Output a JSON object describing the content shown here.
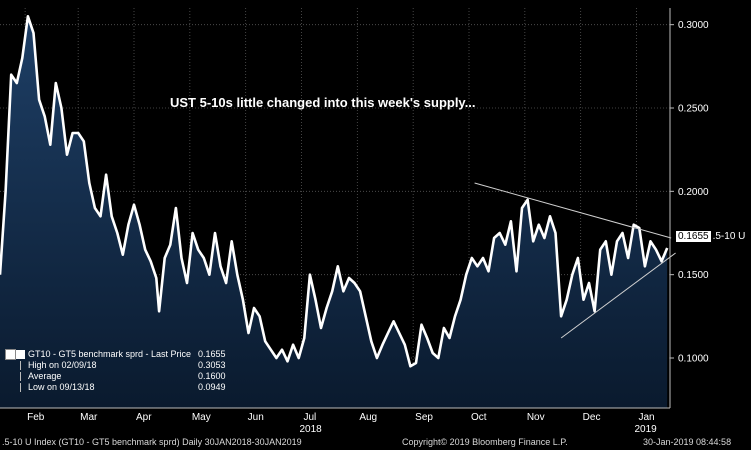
{
  "annotation": "UST 5-10s little changed into this week's supply...",
  "last_price_label": {
    "value": "0.1655",
    "tag": ".5-10 U"
  },
  "legend": {
    "rows": [
      {
        "label": "GT10 - GT5 benchmark sprd - Last Price",
        "value": "0.1655"
      },
      {
        "label": "High on 02/09/18",
        "value": "0.3053"
      },
      {
        "label": "Average",
        "value": "0.1600"
      },
      {
        "label": "Low on 09/13/18",
        "value": "0.0949"
      }
    ]
  },
  "bottom_bar": {
    "left": ".5-10 U Index (GT10 - GT5 benchmark sprd) Daily 30JAN2018-30JAN2019",
    "center": "Copyright© 2019 Bloomberg Finance L.P.",
    "right": "30-Jan-2019 08:44:58"
  },
  "colors": {
    "background": "#000000",
    "line": "#ffffff",
    "fill_top": "#1e3f66",
    "fill_bottom": "#0a1a2e",
    "trendline": "#d0d0d0"
  },
  "chart_data": {
    "type": "area",
    "title": "",
    "xlabel": "",
    "ylabel": "",
    "ylim": [
      0.07,
      0.31
    ],
    "y_ticks": [
      0.1,
      0.15,
      0.2,
      0.25,
      0.3
    ],
    "y_tick_labels": [
      "0.1000",
      "0.1500",
      "0.2000",
      "0.2500",
      "0.3000"
    ],
    "x_tick_labels": [
      "Feb",
      "Mar",
      "Apr",
      "May",
      "Jun",
      "Jul",
      "Aug",
      "Sep",
      "Oct",
      "Nov",
      "Dec",
      "Jan"
    ],
    "x_tick_positions": [
      0.05,
      1.0,
      2.0,
      3.0,
      4.0,
      5.0,
      6.0,
      7.0,
      8.0,
      9.0,
      10.0,
      11.0
    ],
    "x_year_labels": [
      {
        "label": "2018",
        "x": 5.0
      },
      {
        "label": "2019",
        "x": 11.0
      }
    ],
    "xlim": [
      -0.4,
      11.6
    ],
    "series": [
      {
        "values": [
          [
            -0.4,
            0.15
          ],
          [
            -0.3,
            0.2
          ],
          [
            -0.2,
            0.27
          ],
          [
            -0.1,
            0.265
          ],
          [
            0.0,
            0.28
          ],
          [
            0.1,
            0.305
          ],
          [
            0.2,
            0.295
          ],
          [
            0.3,
            0.255
          ],
          [
            0.4,
            0.245
          ],
          [
            0.5,
            0.228
          ],
          [
            0.6,
            0.265
          ],
          [
            0.7,
            0.25
          ],
          [
            0.8,
            0.222
          ],
          [
            0.9,
            0.235
          ],
          [
            1.0,
            0.235
          ],
          [
            1.1,
            0.23
          ],
          [
            1.2,
            0.205
          ],
          [
            1.3,
            0.19
          ],
          [
            1.4,
            0.185
          ],
          [
            1.5,
            0.21
          ],
          [
            1.6,
            0.185
          ],
          [
            1.7,
            0.175
          ],
          [
            1.8,
            0.162
          ],
          [
            1.9,
            0.18
          ],
          [
            2.0,
            0.192
          ],
          [
            2.1,
            0.18
          ],
          [
            2.2,
            0.165
          ],
          [
            2.3,
            0.158
          ],
          [
            2.4,
            0.148
          ],
          [
            2.45,
            0.128
          ],
          [
            2.55,
            0.16
          ],
          [
            2.65,
            0.168
          ],
          [
            2.75,
            0.19
          ],
          [
            2.85,
            0.16
          ],
          [
            2.95,
            0.145
          ],
          [
            3.05,
            0.175
          ],
          [
            3.15,
            0.165
          ],
          [
            3.25,
            0.16
          ],
          [
            3.35,
            0.15
          ],
          [
            3.45,
            0.175
          ],
          [
            3.55,
            0.155
          ],
          [
            3.65,
            0.145
          ],
          [
            3.75,
            0.17
          ],
          [
            3.85,
            0.15
          ],
          [
            3.95,
            0.135
          ],
          [
            4.05,
            0.115
          ],
          [
            4.15,
            0.13
          ],
          [
            4.25,
            0.125
          ],
          [
            4.35,
            0.11
          ],
          [
            4.45,
            0.105
          ],
          [
            4.55,
            0.1
          ],
          [
            4.65,
            0.105
          ],
          [
            4.75,
            0.098
          ],
          [
            4.85,
            0.108
          ],
          [
            4.95,
            0.1
          ],
          [
            5.05,
            0.112
          ],
          [
            5.15,
            0.15
          ],
          [
            5.25,
            0.135
          ],
          [
            5.35,
            0.118
          ],
          [
            5.45,
            0.13
          ],
          [
            5.55,
            0.14
          ],
          [
            5.65,
            0.155
          ],
          [
            5.75,
            0.14
          ],
          [
            5.85,
            0.148
          ],
          [
            5.95,
            0.145
          ],
          [
            6.05,
            0.14
          ],
          [
            6.15,
            0.125
          ],
          [
            6.25,
            0.11
          ],
          [
            6.35,
            0.1
          ],
          [
            6.45,
            0.108
          ],
          [
            6.55,
            0.115
          ],
          [
            6.65,
            0.122
          ],
          [
            6.75,
            0.115
          ],
          [
            6.85,
            0.108
          ],
          [
            6.95,
            0.095
          ],
          [
            7.05,
            0.097
          ],
          [
            7.15,
            0.12
          ],
          [
            7.25,
            0.112
          ],
          [
            7.35,
            0.103
          ],
          [
            7.45,
            0.1
          ],
          [
            7.55,
            0.118
          ],
          [
            7.65,
            0.112
          ],
          [
            7.75,
            0.125
          ],
          [
            7.85,
            0.135
          ],
          [
            7.95,
            0.15
          ],
          [
            8.05,
            0.16
          ],
          [
            8.15,
            0.155
          ],
          [
            8.25,
            0.16
          ],
          [
            8.35,
            0.152
          ],
          [
            8.45,
            0.172
          ],
          [
            8.55,
            0.175
          ],
          [
            8.65,
            0.168
          ],
          [
            8.75,
            0.182
          ],
          [
            8.85,
            0.152
          ],
          [
            8.95,
            0.19
          ],
          [
            9.05,
            0.195
          ],
          [
            9.15,
            0.17
          ],
          [
            9.25,
            0.18
          ],
          [
            9.35,
            0.172
          ],
          [
            9.45,
            0.185
          ],
          [
            9.55,
            0.175
          ],
          [
            9.65,
            0.125
          ],
          [
            9.75,
            0.135
          ],
          [
            9.85,
            0.15
          ],
          [
            9.95,
            0.16
          ],
          [
            10.05,
            0.135
          ],
          [
            10.15,
            0.145
          ],
          [
            10.25,
            0.128
          ],
          [
            10.35,
            0.165
          ],
          [
            10.45,
            0.17
          ],
          [
            10.55,
            0.15
          ],
          [
            10.65,
            0.17
          ],
          [
            10.75,
            0.175
          ],
          [
            10.85,
            0.16
          ],
          [
            10.95,
            0.18
          ],
          [
            11.05,
            0.178
          ],
          [
            11.15,
            0.155
          ],
          [
            11.25,
            0.17
          ],
          [
            11.35,
            0.165
          ],
          [
            11.45,
            0.158
          ],
          [
            11.55,
            0.166
          ]
        ]
      }
    ],
    "trendlines": [
      {
        "from": [
          8.1,
          0.205
        ],
        "to": [
          11.62,
          0.172
        ]
      },
      {
        "from": [
          9.65,
          0.112
        ],
        "to": [
          11.7,
          0.163
        ]
      }
    ]
  }
}
